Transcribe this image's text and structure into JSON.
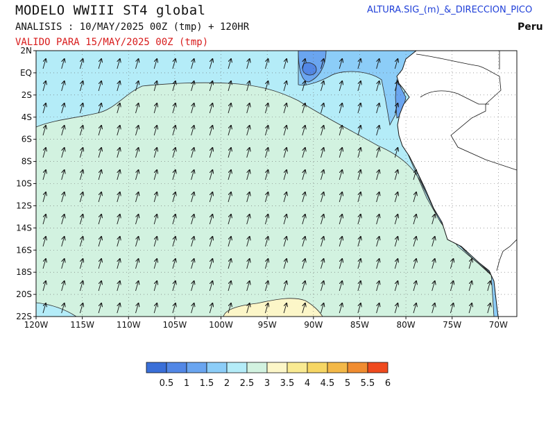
{
  "header": {
    "title": "MODELO WWIII ST4 global",
    "analysis": "ANALISIS : 10/MAY/2025 00Z  (tmp) + 120HR",
    "valid": "VALIDO PARA  15/MAY/2025 00Z  (tmp)",
    "variable": "ALTURA.SIG_(m)_&_DIRECCION_PICO",
    "region": "Peru"
  },
  "map": {
    "lat_labels": [
      "2N",
      "EQ",
      "2S",
      "4S",
      "6S",
      "8S",
      "10S",
      "12S",
      "14S",
      "16S",
      "18S",
      "20S",
      "22S"
    ],
    "lat_values": [
      2,
      0,
      -2,
      -4,
      -6,
      -8,
      -10,
      -12,
      -14,
      -16,
      -18,
      -20,
      -22
    ],
    "lon_labels": [
      "120W",
      "115W",
      "110W",
      "105W",
      "100W",
      "95W",
      "90W",
      "85W",
      "80W",
      "75W",
      "70W"
    ],
    "lon_values": [
      -120,
      -115,
      -110,
      -105,
      -100,
      -95,
      -90,
      -85,
      -80,
      -75,
      -70
    ],
    "lon_range": [
      -120,
      -68
    ],
    "lat_range": [
      -22,
      2
    ],
    "land_color": "#ffffff",
    "grid": "dotted",
    "wave_direction_description": "peak direction arrows pointing north-northeast"
  },
  "colorbar": {
    "labels": [
      "0.5",
      "1",
      "1.5",
      "2",
      "2.5",
      "3",
      "3.5",
      "4",
      "4.5",
      "5",
      "5.5",
      "6"
    ],
    "colors": [
      "#3a6fd8",
      "#5287e6",
      "#6aa5f0",
      "#8ccdf8",
      "#b4ecf8",
      "#d2f2e0",
      "#fcf6c8",
      "#f9ea92",
      "#f6d664",
      "#f3b848",
      "#f08c30",
      "#ef4a1e"
    ]
  }
}
